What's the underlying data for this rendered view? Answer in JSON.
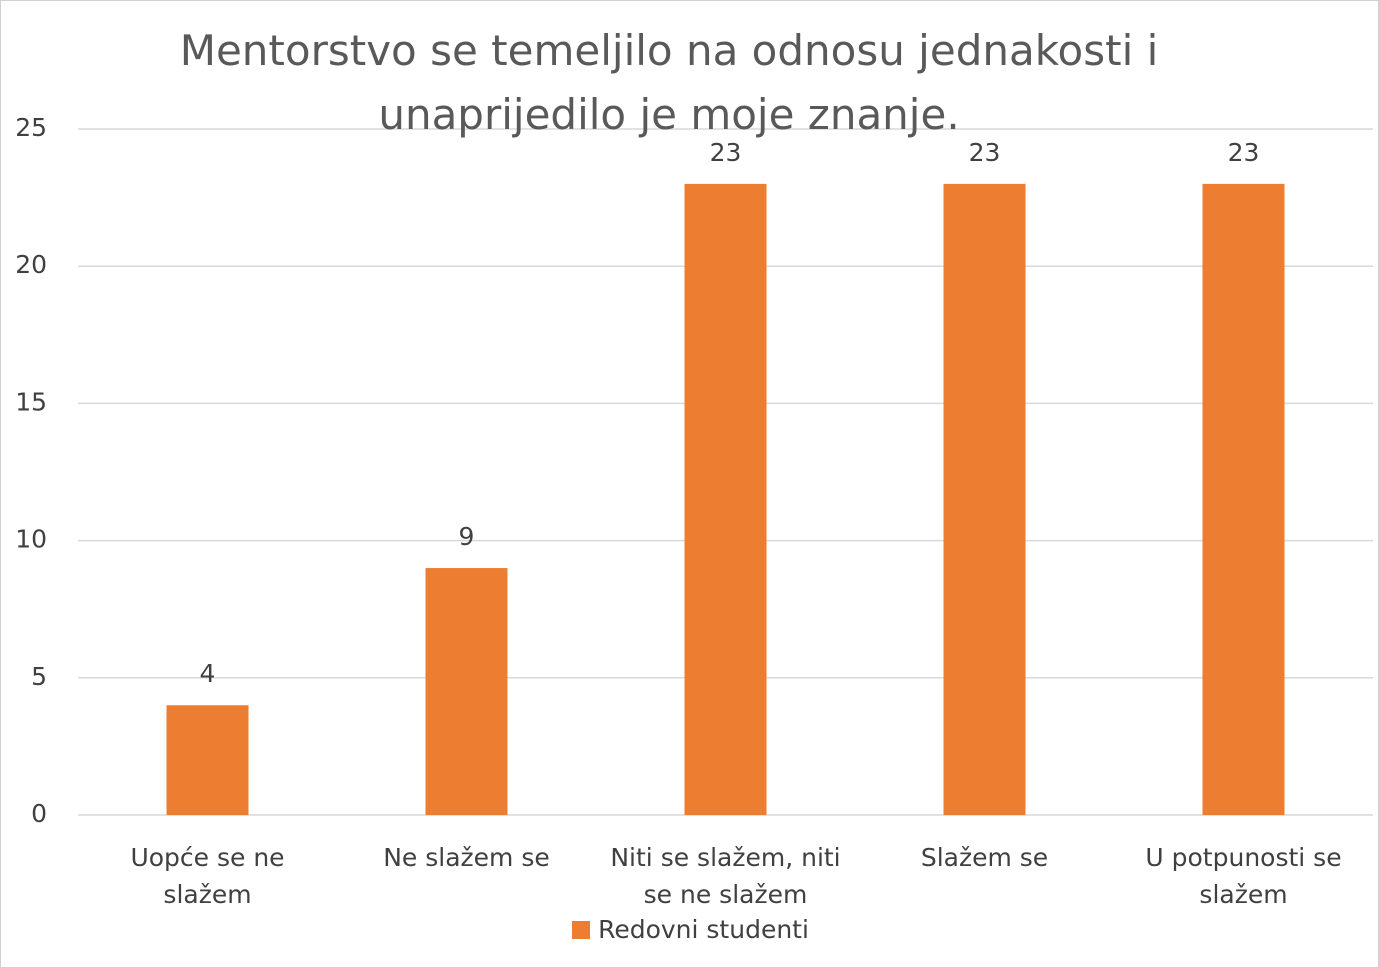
{
  "chart_data": {
    "type": "bar",
    "title": "Mentorstvo se temeljilo na odnosu jednakosti i unaprijedilo je moje znanje.",
    "categories": [
      "Uopće se ne slažem",
      "Ne slažem se",
      "Niti se slažem, niti se ne slažem",
      "Slažem se",
      "U potpunosti se slažem"
    ],
    "series": [
      {
        "name": "Redovni studenti",
        "color": "#ed7d31",
        "values": [
          4,
          9,
          23,
          23,
          23
        ]
      }
    ],
    "ylim": [
      0,
      25
    ],
    "yticks": [
      0,
      5,
      10,
      15,
      20,
      25
    ],
    "grid": true,
    "legend": "bottom"
  }
}
